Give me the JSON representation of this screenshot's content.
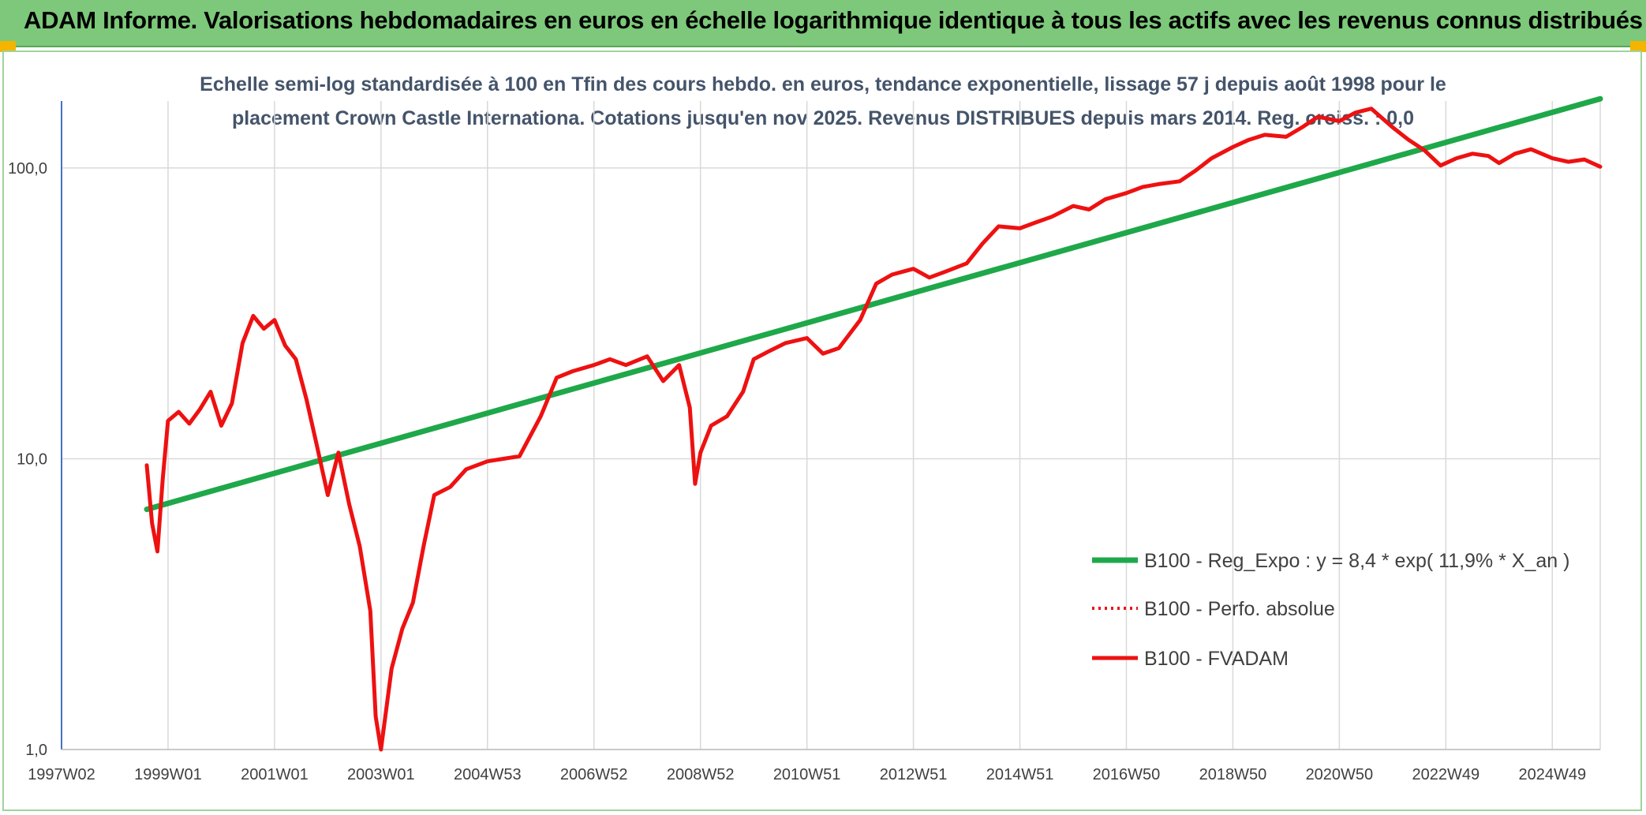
{
  "banner": {
    "title": "ADAM Informe. Valorisations hebdomadaires en euros en échelle logarithmique identique à tous les actifs avec les revenus connus distribués"
  },
  "colors": {
    "banner": "#7dc87a",
    "trend": "#1fa84a",
    "fvadam": "#ee1111",
    "perfo": "#ee1111",
    "grid": "#d9d9d9",
    "title_text": "#44546a"
  },
  "chart_data": {
    "type": "line",
    "title_line1": "Echelle semi-log standardisée à 100 en Tfin des cours hebdo. en euros, tendance exponentielle, lissage 57 j depuis août 1998 pour le",
    "title_line2": "placement Crown Castle Internationa. Cotations jusqu'en nov 2025. Revenus DISTRIBUES depuis mars 2014. Reg. croiss. : 0,0",
    "y_scale": "log",
    "ylim": [
      1,
      170
    ],
    "xlim": [
      1997.0,
      2025.9
    ],
    "grid": true,
    "legend_position": "right",
    "y_ticks": [
      {
        "value": 1,
        "label": "1,0"
      },
      {
        "value": 10,
        "label": "10,0"
      },
      {
        "value": 100,
        "label": "100,0"
      }
    ],
    "x_ticks": [
      {
        "value": 1997.0,
        "label": "1997W02"
      },
      {
        "value": 1999.0,
        "label": "1999W01"
      },
      {
        "value": 2001.0,
        "label": "2001W01"
      },
      {
        "value": 2003.0,
        "label": "2003W01"
      },
      {
        "value": 2005.0,
        "label": "2004W53"
      },
      {
        "value": 2007.0,
        "label": "2006W52"
      },
      {
        "value": 2009.0,
        "label": "2008W52"
      },
      {
        "value": 2011.0,
        "label": "2010W51"
      },
      {
        "value": 2013.0,
        "label": "2012W51"
      },
      {
        "value": 2015.0,
        "label": "2014W51"
      },
      {
        "value": 2017.0,
        "label": "2016W50"
      },
      {
        "value": 2019.0,
        "label": "2018W50"
      },
      {
        "value": 2021.0,
        "label": "2020W50"
      },
      {
        "value": 2023.0,
        "label": "2022W49"
      },
      {
        "value": 2025.0,
        "label": "2024W49"
      }
    ],
    "series": [
      {
        "name": "B100 - Reg_Expo : y = 8,4 * exp( 11,9% *  X_an )",
        "style": "solid-thick",
        "x": [
          1998.6,
          2025.9
        ],
        "y": [
          6.7,
          173
        ]
      },
      {
        "name": "B100 - Perfo. absolue",
        "style": "dotted",
        "x": [],
        "y": []
      },
      {
        "name": "B100 - FVADAM",
        "style": "solid",
        "x": [
          1998.6,
          1998.7,
          1998.8,
          1998.9,
          1999.0,
          1999.2,
          1999.4,
          1999.6,
          1999.8,
          2000.0,
          2000.2,
          2000.4,
          2000.6,
          2000.8,
          2001.0,
          2001.2,
          2001.4,
          2001.6,
          2001.8,
          2002.0,
          2002.2,
          2002.4,
          2002.6,
          2002.8,
          2002.9,
          2003.0,
          2003.2,
          2003.4,
          2003.6,
          2003.8,
          2004.0,
          2004.3,
          2004.6,
          2005.0,
          2005.3,
          2005.6,
          2006.0,
          2006.3,
          2006.6,
          2007.0,
          2007.3,
          2007.6,
          2008.0,
          2008.3,
          2008.6,
          2008.8,
          2008.9,
          2009.0,
          2009.2,
          2009.5,
          2009.8,
          2010.0,
          2010.3,
          2010.6,
          2011.0,
          2011.3,
          2011.6,
          2012.0,
          2012.3,
          2012.6,
          2013.0,
          2013.3,
          2013.6,
          2014.0,
          2014.3,
          2014.6,
          2015.0,
          2015.3,
          2015.6,
          2016.0,
          2016.3,
          2016.6,
          2017.0,
          2017.3,
          2017.6,
          2018.0,
          2018.3,
          2018.6,
          2019.0,
          2019.3,
          2019.6,
          2020.0,
          2020.3,
          2020.6,
          2021.0,
          2021.3,
          2021.6,
          2022.0,
          2022.3,
          2022.6,
          2022.9,
          2023.2,
          2023.5,
          2023.8,
          2024.0,
          2024.3,
          2024.6,
          2025.0,
          2025.3,
          2025.6,
          2025.9
        ],
        "y": [
          9.5,
          6.0,
          4.8,
          8.5,
          13.5,
          14.5,
          13.2,
          14.8,
          17.0,
          13.0,
          15.5,
          25.0,
          31.0,
          28.0,
          30.0,
          24.5,
          22.0,
          16.0,
          11.0,
          7.5,
          10.5,
          7.0,
          5.0,
          3.0,
          1.3,
          1.0,
          1.9,
          2.6,
          3.2,
          5.0,
          7.5,
          8.0,
          9.2,
          9.8,
          10.0,
          10.2,
          14.0,
          19.0,
          20.0,
          21.0,
          22.0,
          21.0,
          22.5,
          18.5,
          21.0,
          15.0,
          8.2,
          10.5,
          13.0,
          14.0,
          17.0,
          22.0,
          23.5,
          25.0,
          26.0,
          23.0,
          24.0,
          30.0,
          40.0,
          43.0,
          45.0,
          42.0,
          44.0,
          47.0,
          55.0,
          63.0,
          62.0,
          65.0,
          68.0,
          74.0,
          72.0,
          78.0,
          82.0,
          86.0,
          88.0,
          90.0,
          98.0,
          108.0,
          118.0,
          125.0,
          130.0,
          128.0,
          138.0,
          150.0,
          145.0,
          155.0,
          160.0,
          138.0,
          125.0,
          115.0,
          102.0,
          108.0,
          112.0,
          110.0,
          104.0,
          112.0,
          116.0,
          108.0,
          105.0,
          107.0,
          101.0
        ]
      }
    ]
  }
}
